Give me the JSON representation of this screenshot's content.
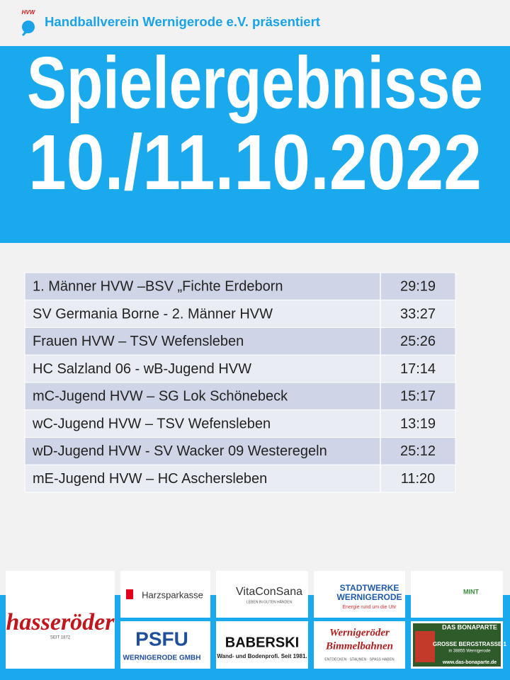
{
  "header": {
    "logo_text": "HVW",
    "text": "Handballverein Wernigerode e.V. präsentiert"
  },
  "banner": {
    "title": "Spielergebnisse",
    "date": "10./11.10.2022"
  },
  "table": {
    "rows": [
      [
        "1. Männer HVW –BSV „Fichte Erdeborn",
        "29:19"
      ],
      [
        "SV Germania Borne - 2. Männer HVW",
        "33:27"
      ],
      [
        "Frauen HVW – TSV Wefensleben",
        "25:26"
      ],
      [
        "HC Salzland 06 - wB-Jugend HVW",
        "17:14"
      ],
      [
        "mC-Jugend HVW – SG Lok Schönebeck",
        "15:17"
      ],
      [
        "wC-Jugend HVW – TSV Wefensleben",
        "13:19"
      ],
      [
        "wD-Jugend HVW - SV Wacker 09 Westeregeln",
        "25:12"
      ],
      [
        "mE-Jugend HVW – HC Aschersleben",
        "11:20"
      ]
    ]
  },
  "sponsors": [
    {
      "lines": [
        "hasseröder",
        "SEIT 1872"
      ]
    },
    {
      "lines": [
        "Harzsparkasse"
      ]
    },
    {
      "lines": [
        "VitaConSana",
        "LEBEN IN GUTEN HÄNDEN"
      ]
    },
    {
      "lines": [
        "STADTWERKE",
        "WERNIGERODE",
        "Energie rund um die Uhr"
      ]
    },
    {
      "lines": [
        "MINT"
      ]
    },
    {
      "lines": [
        "PSFU",
        "WERNIGERODE GMBH"
      ]
    },
    {
      "lines": [
        "BABERSKI",
        "Wand- und Bodenprofi. Seit 1981."
      ]
    },
    {
      "lines": [
        "Wernigeröder",
        "Bimmelbahnen",
        "ENTDECKEN · STAUNEN · SPASS HABEN"
      ]
    },
    {
      "lines": [
        "DAS BONAPARTE",
        "GROSSE BERGSTRASSE 1",
        "in 38855 Wernigerode",
        "www.das-bonaparte.de"
      ]
    }
  ]
}
